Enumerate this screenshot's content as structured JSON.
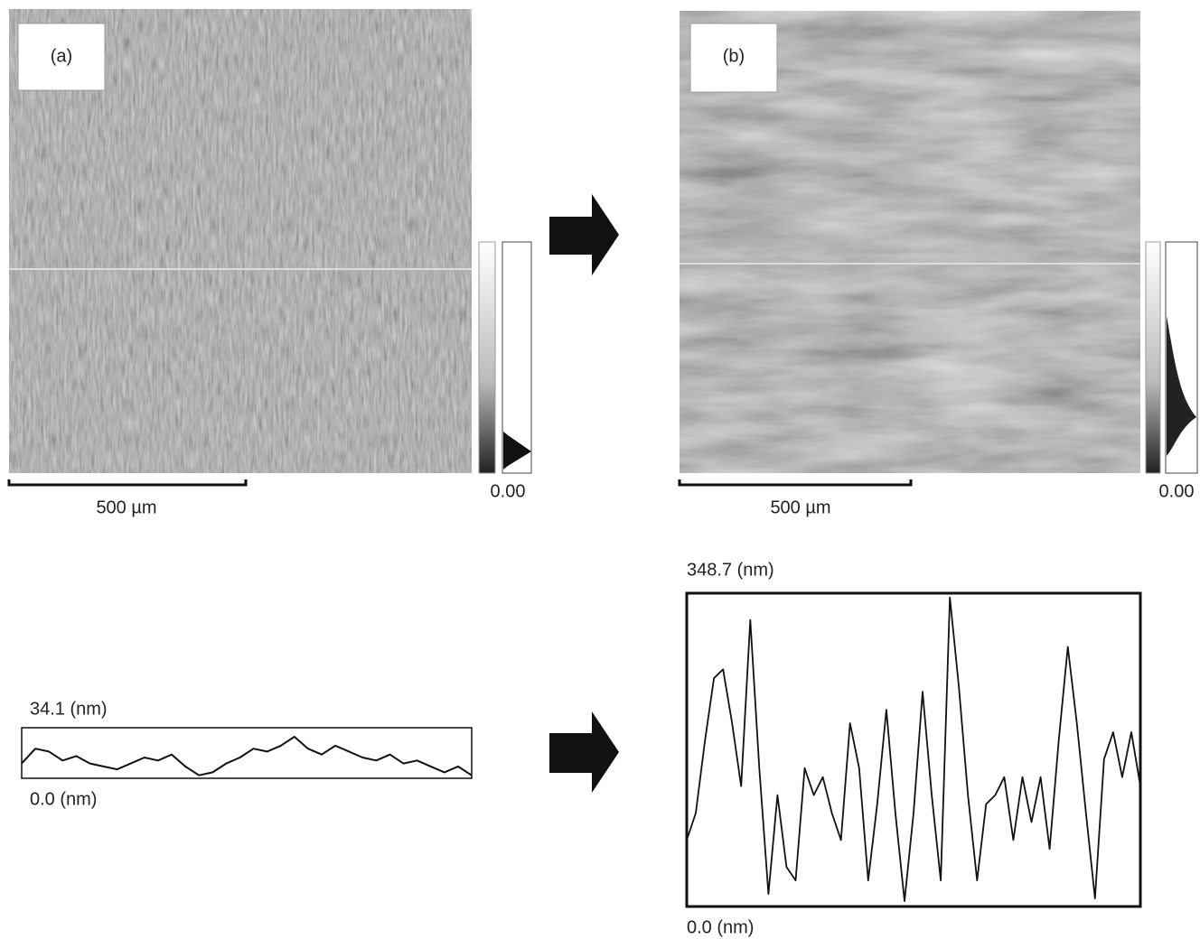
{
  "panels": [
    {
      "label": "(a)",
      "scale_bar": "500 µm",
      "colorbar_min": "0.00"
    },
    {
      "label": "(b)",
      "scale_bar": "500 µm",
      "colorbar_min": "0.00"
    }
  ],
  "profiles": [
    {
      "ylim": [
        0,
        34.1
      ],
      "yticks": [
        {
          "value": 0,
          "label": "0.0 (nm)"
        },
        {
          "value": 34.1,
          "label": "34.1 (nm)"
        }
      ],
      "values": [
        10,
        20,
        18,
        12,
        15,
        10,
        8,
        6,
        10,
        14,
        12,
        16,
        8,
        2,
        4,
        10,
        14,
        20,
        18,
        22,
        28,
        20,
        16,
        22,
        18,
        14,
        12,
        16,
        10,
        12,
        8,
        4,
        8,
        2
      ]
    },
    {
      "ylim": [
        0,
        348.7
      ],
      "yticks": [
        {
          "value": 0,
          "label": "0.0 (nm)"
        },
        {
          "value": 348.7,
          "label": "348.7 (nm)"
        }
      ],
      "values": [
        74,
        104,
        184,
        254,
        264,
        204,
        134,
        319,
        154,
        14,
        124,
        44,
        29,
        154,
        124,
        144,
        104,
        74,
        204,
        154,
        29,
        114,
        219,
        104,
        6,
        104,
        239,
        124,
        29,
        344,
        244,
        124,
        29,
        114,
        124,
        144,
        74,
        144,
        94,
        144,
        64,
        184,
        289,
        204,
        104,
        9,
        164,
        194,
        144,
        194,
        134
      ]
    }
  ]
}
